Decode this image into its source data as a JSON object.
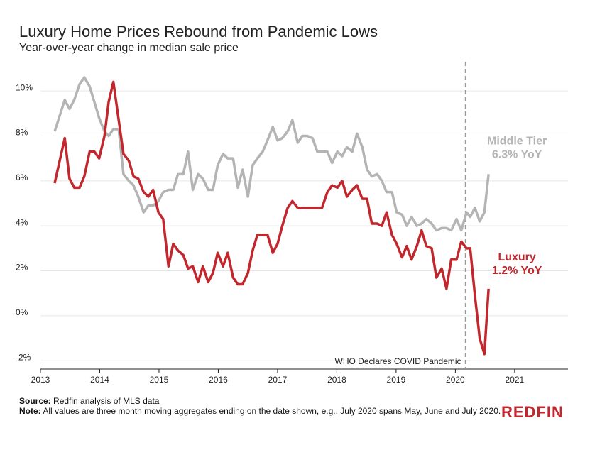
{
  "chart_data": {
    "type": "line",
    "title": "Luxury Home Prices Rebound from Pandemic Lows",
    "subtitle": "Year-over-year change in median sale price",
    "x": [
      2013.24,
      2013.41,
      2013.49,
      2013.57,
      2013.66,
      2013.74,
      2013.83,
      2013.91,
      2013.99,
      2014.08,
      2014.15,
      2014.23,
      2014.32,
      2014.4,
      2014.49,
      2014.57,
      2014.65,
      2014.74,
      2014.82,
      2014.9,
      2014.99,
      2015.07,
      2015.16,
      2015.24,
      2015.32,
      2015.41,
      2015.49,
      2015.57,
      2015.66,
      2015.74,
      2015.83,
      2015.91,
      2015.99,
      2016.08,
      2016.16,
      2016.25,
      2016.33,
      2016.41,
      2016.5,
      2016.58,
      2016.66,
      2016.75,
      2016.83,
      2016.92,
      2017.0,
      2017.08,
      2017.17,
      2017.25,
      2017.34,
      2017.42,
      2017.5,
      2017.59,
      2017.67,
      2017.75,
      2017.84,
      2017.92,
      2018.01,
      2018.09,
      2018.17,
      2018.26,
      2018.34,
      2018.43,
      2018.51,
      2018.59,
      2018.68,
      2018.76,
      2018.84,
      2018.93,
      2019.01,
      2019.1,
      2019.18,
      2019.26,
      2019.35,
      2019.43,
      2019.51,
      2019.6,
      2019.68,
      2019.77,
      2019.85,
      2019.93,
      2020.02,
      2020.1,
      2020.19,
      2020.25,
      2020.33,
      2020.41,
      2020.49,
      2020.56
    ],
    "series": [
      {
        "name": "Middle Tier",
        "end_label": "6.3% YoY",
        "color": "#b4b4b4",
        "values": [
          8.2,
          9.6,
          9.2,
          9.6,
          10.3,
          10.6,
          10.2,
          9.5,
          8.8,
          8.2,
          8.0,
          8.3,
          8.3,
          6.3,
          6.0,
          5.8,
          5.3,
          4.6,
          4.9,
          4.9,
          5.1,
          5.5,
          5.6,
          5.6,
          6.3,
          6.3,
          7.3,
          5.6,
          6.3,
          6.1,
          5.6,
          5.6,
          6.7,
          7.2,
          7.0,
          7.0,
          5.7,
          6.5,
          5.3,
          6.7,
          7.0,
          7.3,
          7.8,
          8.4,
          7.8,
          7.9,
          8.2,
          8.7,
          7.7,
          8.0,
          8.0,
          7.9,
          7.3,
          7.3,
          7.3,
          6.8,
          7.3,
          7.1,
          7.5,
          7.3,
          8.1,
          7.5,
          6.5,
          6.2,
          6.3,
          6.0,
          5.5,
          5.5,
          4.6,
          4.5,
          4.0,
          4.4,
          4.0,
          4.1,
          4.3,
          4.1,
          3.8,
          3.9,
          3.9,
          3.8,
          4.3,
          3.8,
          4.6,
          4.4,
          4.8,
          4.2,
          4.6,
          6.3
        ]
      },
      {
        "name": "Luxury",
        "end_label": "1.2% YoY",
        "color": "#c1272d",
        "values": [
          5.9,
          7.9,
          6.1,
          5.7,
          5.7,
          6.2,
          7.3,
          7.3,
          7.0,
          8.0,
          9.5,
          10.4,
          8.7,
          7.2,
          6.9,
          6.2,
          6.1,
          5.5,
          5.3,
          5.6,
          4.6,
          4.3,
          2.2,
          3.2,
          2.9,
          2.7,
          2.1,
          2.2,
          1.5,
          2.2,
          1.5,
          1.9,
          2.8,
          2.2,
          2.8,
          1.7,
          1.4,
          1.4,
          1.9,
          2.9,
          3.6,
          3.6,
          3.6,
          2.8,
          3.2,
          4.0,
          4.8,
          5.1,
          4.8,
          4.8,
          4.8,
          4.8,
          4.8,
          4.8,
          5.5,
          5.8,
          5.7,
          6.0,
          5.3,
          5.6,
          5.8,
          5.2,
          5.2,
          4.1,
          4.1,
          4.0,
          4.6,
          3.6,
          3.2,
          2.6,
          3.1,
          2.5,
          3.1,
          3.8,
          3.1,
          3.0,
          1.7,
          2.1,
          1.2,
          2.5,
          2.5,
          3.3,
          3.0,
          3.0,
          0.9,
          -1.0,
          -1.7,
          1.2
        ]
      }
    ],
    "annotations": [
      {
        "text": "WHO Declares COVID Pandemic",
        "x": 2020.17
      }
    ],
    "xlim": [
      2013,
      2021.9
    ],
    "xticks": [
      2013,
      2014,
      2015,
      2016,
      2017,
      2018,
      2019,
      2020,
      2021
    ],
    "ylim": [
      -2.37,
      11.36
    ],
    "yticks": [
      {
        "value": -2,
        "label": "-2%"
      },
      {
        "value": 0,
        "label": "0%"
      },
      {
        "value": 2,
        "label": "2%"
      },
      {
        "value": 4,
        "label": "4%"
      },
      {
        "value": 6,
        "label": "6%"
      },
      {
        "value": 8,
        "label": "8%"
      },
      {
        "value": 10,
        "label": "10%"
      }
    ],
    "grid": true
  },
  "footer": {
    "source_label": "Source:",
    "source": "Redfin analysis of MLS data",
    "note_label": "Note:",
    "note": "All values are three month moving aggregates ending on the date shown, e.g., July 2020 spans May, June and July 2020.",
    "logo": "REDFIN"
  }
}
